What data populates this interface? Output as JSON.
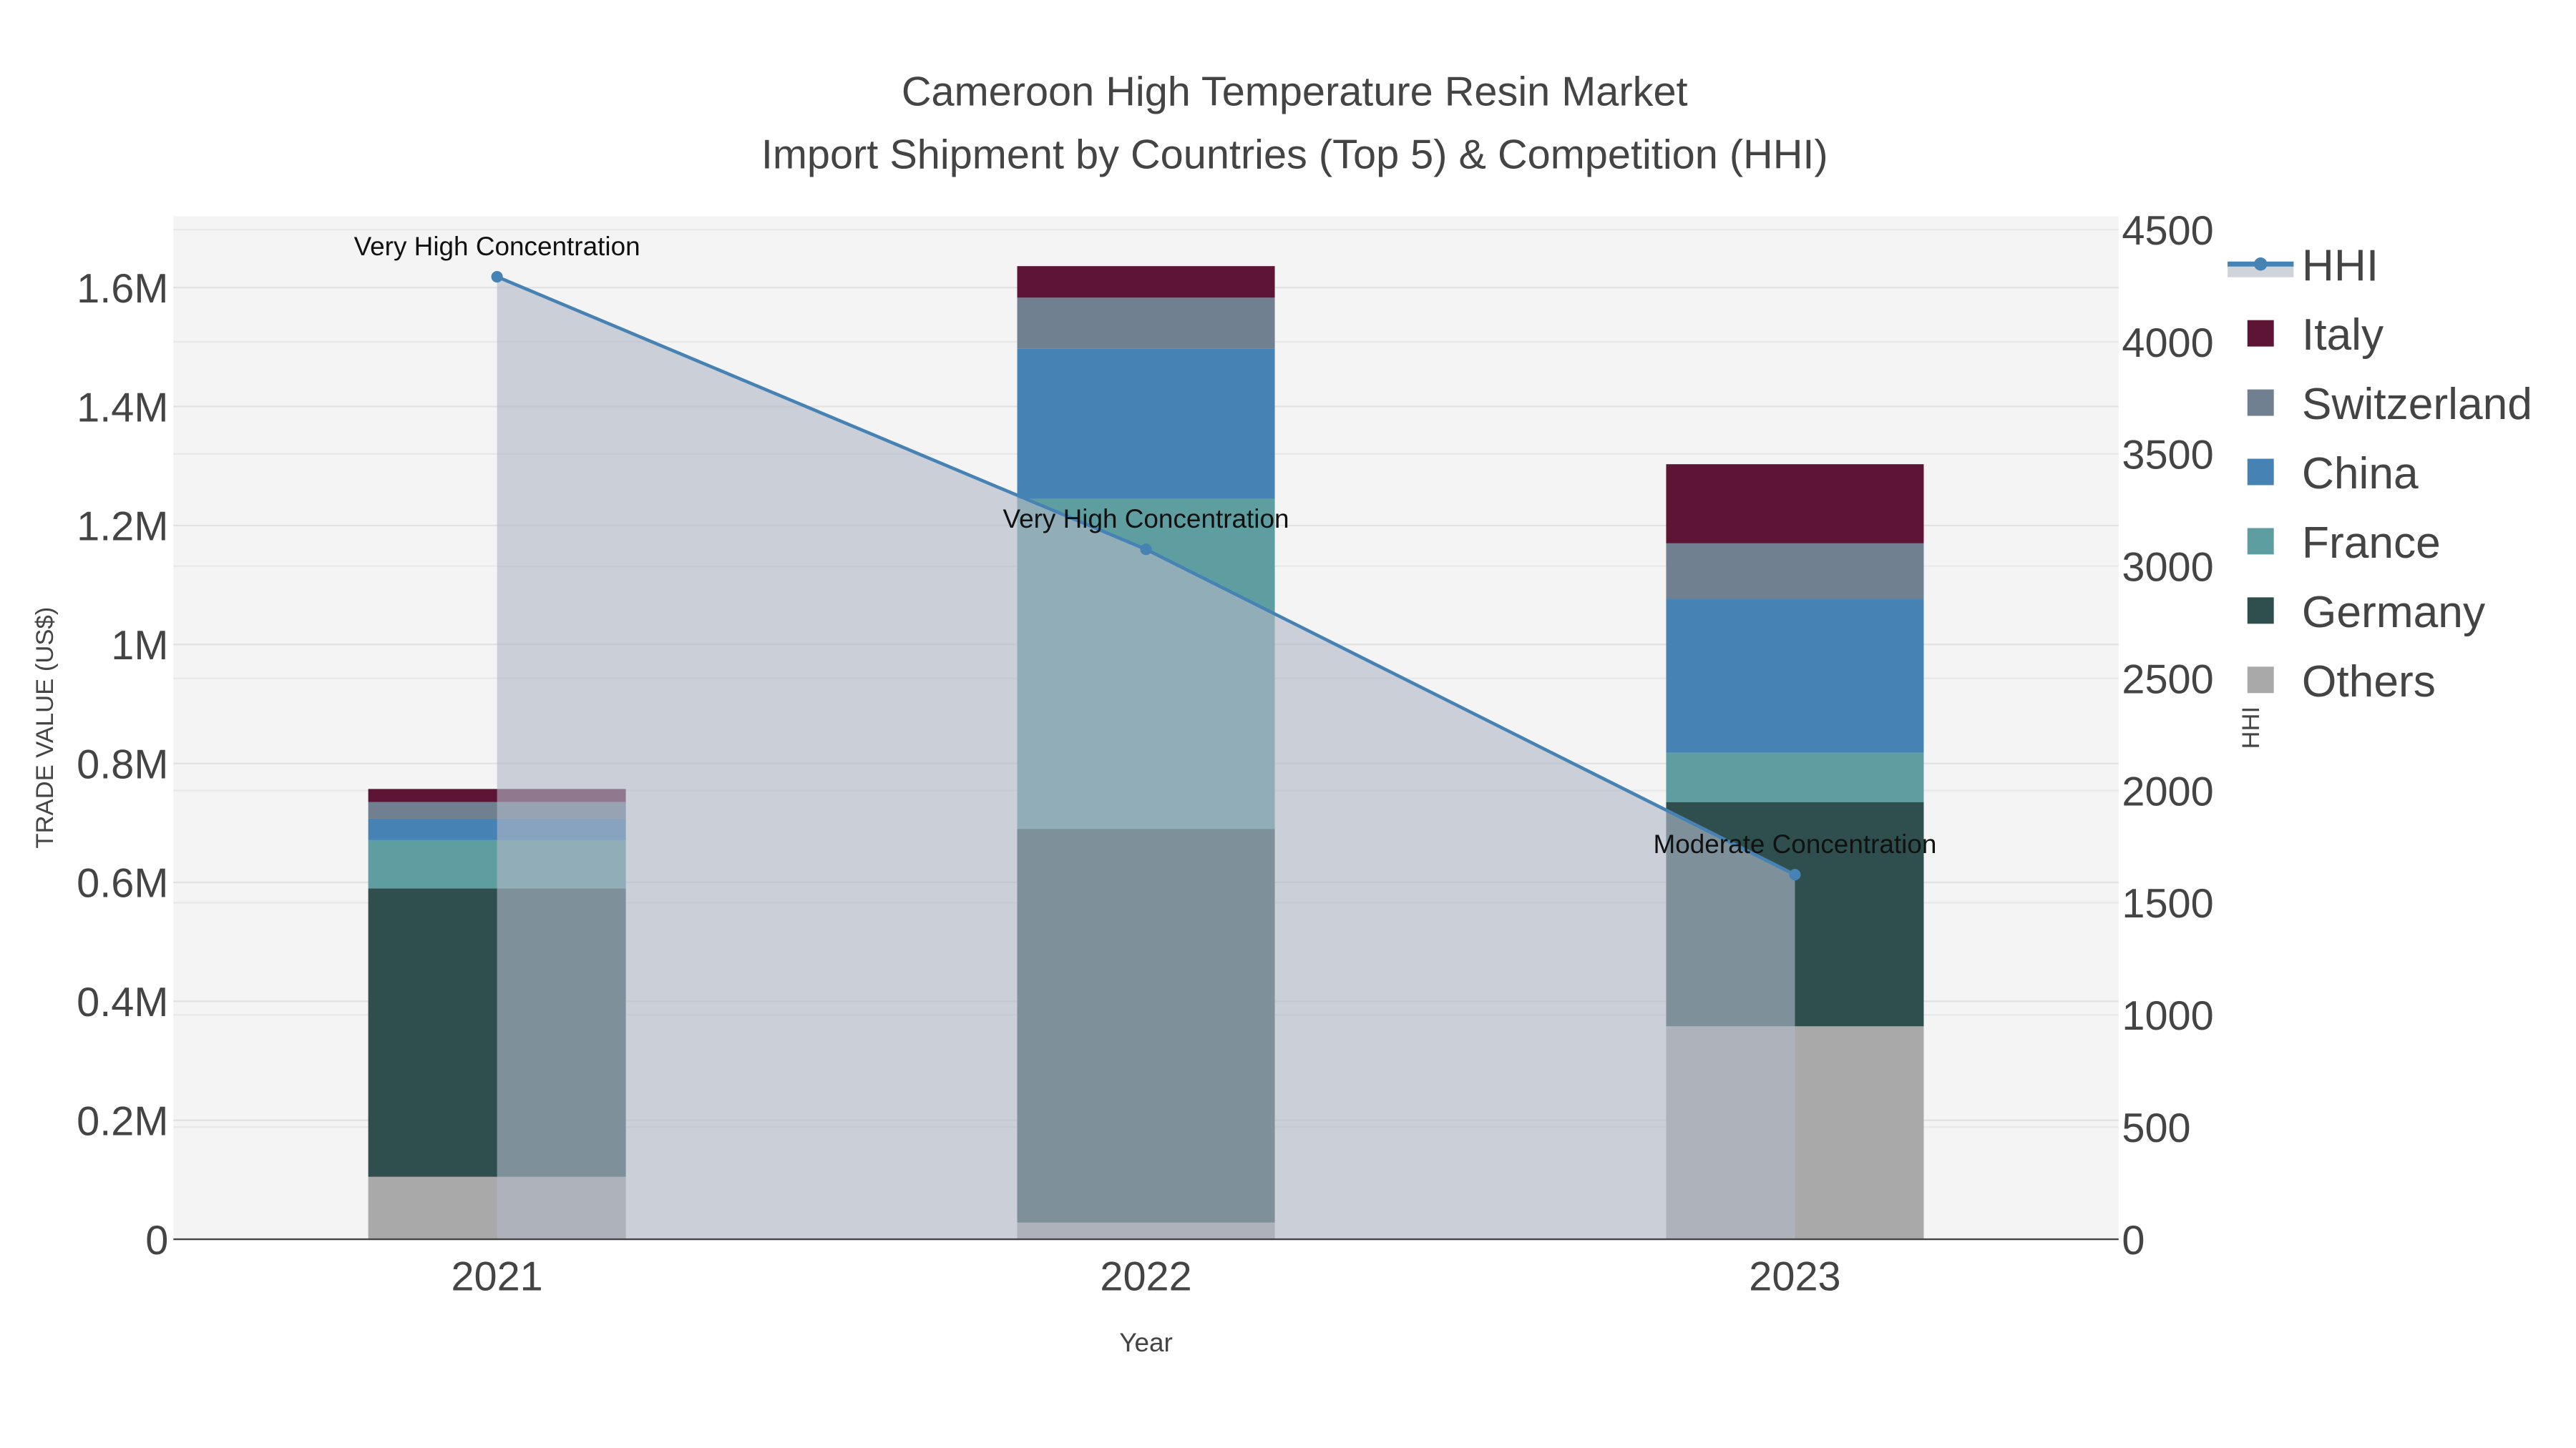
{
  "chart_data": {
    "type": "bar",
    "stacked": true,
    "title": "Cameroon High Temperature Resin Market",
    "subtitle": "Import Shipment by Countries (Top 5) & Competition (HHI)",
    "xlabel": "Year",
    "ylabel": "TRADE VALUE (US$)",
    "y2label": "HHI",
    "categories": [
      "2021",
      "2022",
      "2023"
    ],
    "ylim": [
      0,
      1720000
    ],
    "y2lim": [
      0,
      4560
    ],
    "yticks": [
      {
        "v": 0,
        "label": "0"
      },
      {
        "v": 200000,
        "label": "0.2M"
      },
      {
        "v": 400000,
        "label": "0.4M"
      },
      {
        "v": 600000,
        "label": "0.6M"
      },
      {
        "v": 800000,
        "label": "0.8M"
      },
      {
        "v": 1000000,
        "label": "1M"
      },
      {
        "v": 1200000,
        "label": "1.2M"
      },
      {
        "v": 1400000,
        "label": "1.4M"
      },
      {
        "v": 1600000,
        "label": "1.6M"
      }
    ],
    "y2ticks": [
      {
        "v": 0,
        "label": "0"
      },
      {
        "v": 500,
        "label": "500"
      },
      {
        "v": 1000,
        "label": "1000"
      },
      {
        "v": 1500,
        "label": "1500"
      },
      {
        "v": 2000,
        "label": "2000"
      },
      {
        "v": 2500,
        "label": "2500"
      },
      {
        "v": 3000,
        "label": "3000"
      },
      {
        "v": 3500,
        "label": "3500"
      },
      {
        "v": 4000,
        "label": "4000"
      },
      {
        "v": 4500,
        "label": "4500"
      }
    ],
    "series": [
      {
        "name": "Others",
        "color": "#a9a9a9",
        "values": [
          105000,
          28000,
          358000
        ]
      },
      {
        "name": "Germany",
        "color": "#2f4f4f",
        "values": [
          485000,
          662000,
          377000
        ]
      },
      {
        "name": "France",
        "color": "#5f9ea0",
        "values": [
          81000,
          555000,
          83000
        ]
      },
      {
        "name": "China",
        "color": "#4682b4",
        "values": [
          36000,
          252000,
          258000
        ]
      },
      {
        "name": "Switzerland",
        "color": "#708090",
        "values": [
          28000,
          86000,
          94000
        ]
      },
      {
        "name": "Italy",
        "color": "#5e1434",
        "values": [
          22000,
          53000,
          133000
        ]
      }
    ],
    "hhi": {
      "name": "HHI",
      "color": "#4682b4",
      "values": [
        4290,
        3075,
        1625
      ],
      "annotations": [
        "Very High Concentration",
        "Very High Concentration",
        "Moderate Concentration"
      ]
    },
    "legend": [
      "HHI",
      "Italy",
      "Switzerland",
      "China",
      "France",
      "Germany",
      "Others"
    ],
    "legend_position": "right",
    "grid": true
  }
}
